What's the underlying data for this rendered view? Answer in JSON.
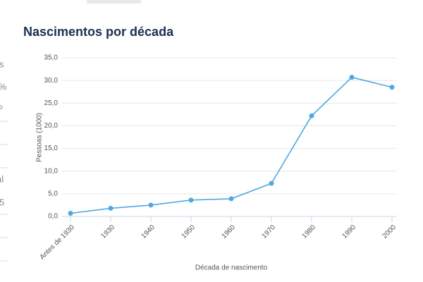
{
  "side_fragments": [
    "s",
    "%",
    "º",
    "al",
    "5"
  ],
  "chart_data": {
    "type": "line",
    "title": "Nascimentos por década",
    "x_label": "Década de nascimento",
    "y_label": "Pessoas (1000)",
    "categories": [
      "Antes de 1930",
      "1930",
      "1940",
      "1950",
      "1960",
      "1970",
      "1980",
      "1990",
      "2000"
    ],
    "values": [
      0.7,
      1.8,
      2.5,
      3.6,
      3.9,
      7.3,
      22.2,
      30.7,
      28.5
    ],
    "color": "#4ea9e0",
    "ylim": [
      0,
      35
    ],
    "yticks": [
      {
        "value": 0,
        "label": "0,0"
      },
      {
        "value": 5,
        "label": "5,0"
      },
      {
        "value": 10,
        "label": "10,0"
      },
      {
        "value": 15,
        "label": "15,0"
      },
      {
        "value": 20,
        "label": "20,0"
      },
      {
        "value": 25,
        "label": "25,0"
      },
      {
        "value": 30,
        "label": "30,0"
      },
      {
        "value": 35,
        "label": "35,0"
      }
    ],
    "grid": true
  }
}
